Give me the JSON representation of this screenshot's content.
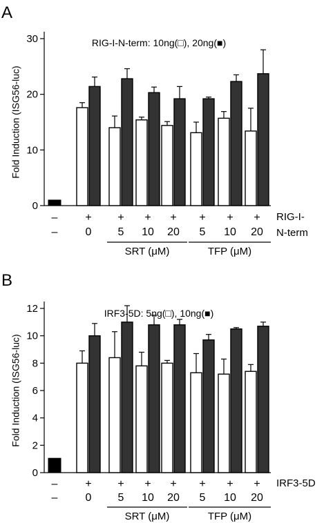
{
  "chart_data": [
    {
      "type": "bar",
      "panel_label": "A",
      "title": "RIG-I-N-term: 10ng(□), 20ng(■)",
      "ylabel": "Fold Induction (ISG56-luc)",
      "ylim": [
        0,
        30
      ],
      "yticks": [
        "0",
        "10",
        "20",
        "30"
      ],
      "grid": false,
      "categories": [
        "control",
        "0",
        "SRT 5",
        "SRT 10",
        "SRT 20",
        "TFP 5",
        "TFP 10",
        "TFP 20"
      ],
      "row1": [
        "–",
        "+",
        "+",
        "+",
        "+",
        "+",
        "+",
        "+"
      ],
      "row2": [
        "–",
        "0",
        "5",
        "10",
        "20",
        "5",
        "10",
        "20"
      ],
      "row1_label": "RIG-I-",
      "row1_label_cont": "N-term",
      "groups": [
        {
          "label": "SRT (μM)",
          "from": 2,
          "to": 4
        },
        {
          "label": "TFP (μM)",
          "from": 5,
          "to": 7
        }
      ],
      "control": {
        "value": 1.0,
        "color": "#000000"
      },
      "series": [
        {
          "fill": "#ffffff",
          "values": [
            null,
            17.6,
            14.0,
            15.4,
            14.4,
            13.1,
            15.7,
            13.4
          ],
          "errors": [
            null,
            0.9,
            2.1,
            0.5,
            0.7,
            1.9,
            1.2,
            4.1
          ]
        },
        {
          "fill": "#333333",
          "values": [
            null,
            21.4,
            22.8,
            20.3,
            19.2,
            19.2,
            22.3,
            23.7
          ],
          "errors": [
            null,
            1.7,
            1.8,
            1.0,
            2.2,
            0.3,
            1.2,
            4.3
          ]
        }
      ]
    },
    {
      "type": "bar",
      "panel_label": "B",
      "title": "IRF3-5D: 5ng(□), 10ng(■)",
      "ylabel": "Fold Induction (ISG56-luc)",
      "ylim": [
        0,
        12
      ],
      "yticks": [
        "0",
        "2",
        "4",
        "6",
        "8",
        "10",
        "12"
      ],
      "grid": false,
      "categories": [
        "control",
        "0",
        "SRT 5",
        "SRT 10",
        "SRT 20",
        "TFP 5",
        "TFP 10",
        "TFP 20"
      ],
      "row1": [
        "–",
        "+",
        "+",
        "+",
        "+",
        "+",
        "+",
        "+"
      ],
      "row2": [
        "–",
        "0",
        "5",
        "10",
        "20",
        "5",
        "10",
        "20"
      ],
      "row1_label": "IRF3-5D",
      "row1_label_cont": "",
      "groups": [
        {
          "label": "SRT (μM)",
          "from": 2,
          "to": 4
        },
        {
          "label": "TFP (μM)",
          "from": 5,
          "to": 7
        }
      ],
      "control": {
        "value": 1.05,
        "color": "#000000"
      },
      "series": [
        {
          "fill": "#ffffff",
          "values": [
            null,
            8.0,
            8.4,
            7.8,
            8.0,
            7.3,
            7.2,
            7.4
          ],
          "errors": [
            null,
            0.9,
            1.9,
            1.0,
            0.2,
            1.4,
            1.1,
            0.5
          ]
        },
        {
          "fill": "#333333",
          "values": [
            null,
            10.0,
            11.0,
            10.8,
            10.8,
            9.7,
            10.5,
            10.7
          ],
          "errors": [
            null,
            0.9,
            1.2,
            0.7,
            0.4,
            0.4,
            0.1,
            0.3
          ]
        }
      ]
    }
  ]
}
